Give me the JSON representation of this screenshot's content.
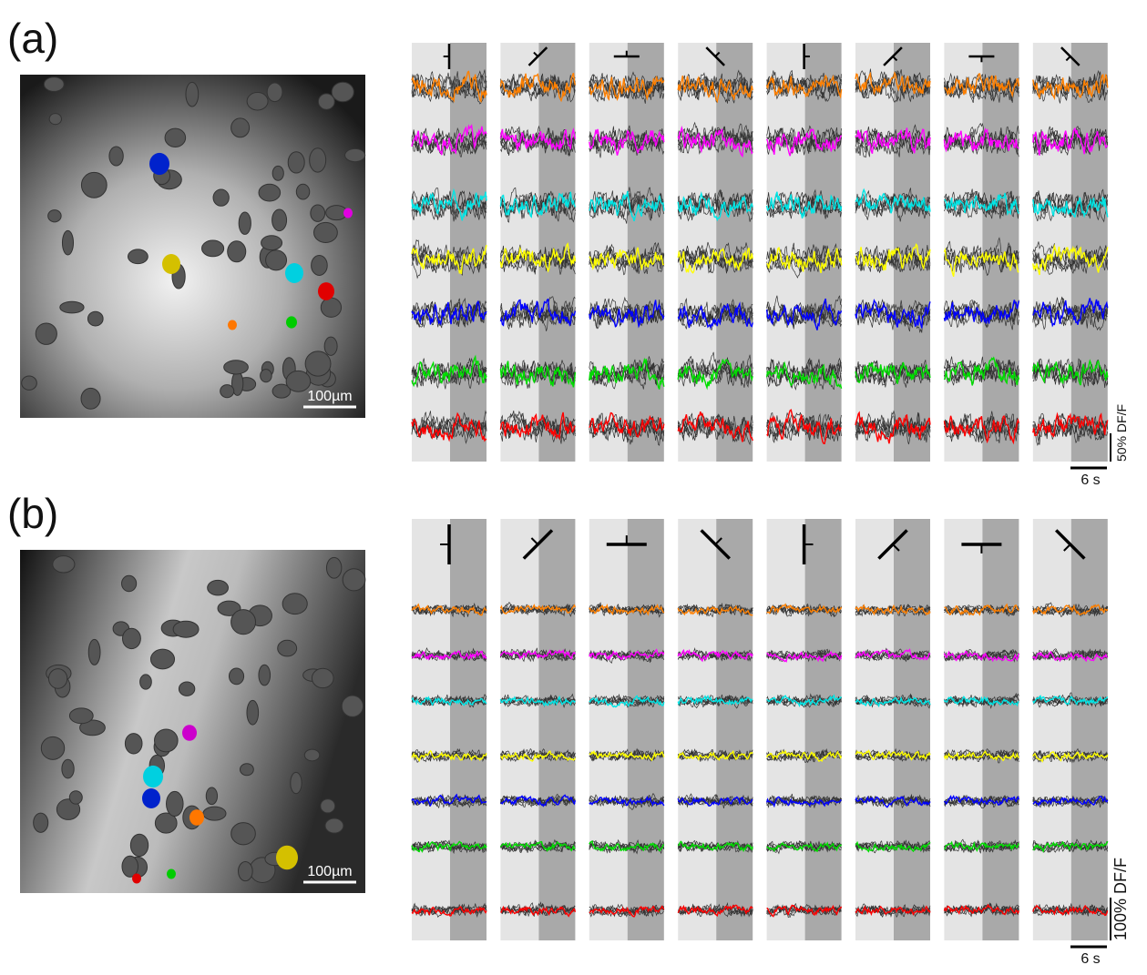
{
  "panels": [
    {
      "label": "(a)",
      "scale_bar": "100µm",
      "amplitude_bar": "50% DF/F",
      "time_bar": "6 s"
    },
    {
      "label": "(b)",
      "scale_bar": "100µm",
      "amplitude_bar": "100% DF/F",
      "time_bar": "6 s"
    }
  ]
}
